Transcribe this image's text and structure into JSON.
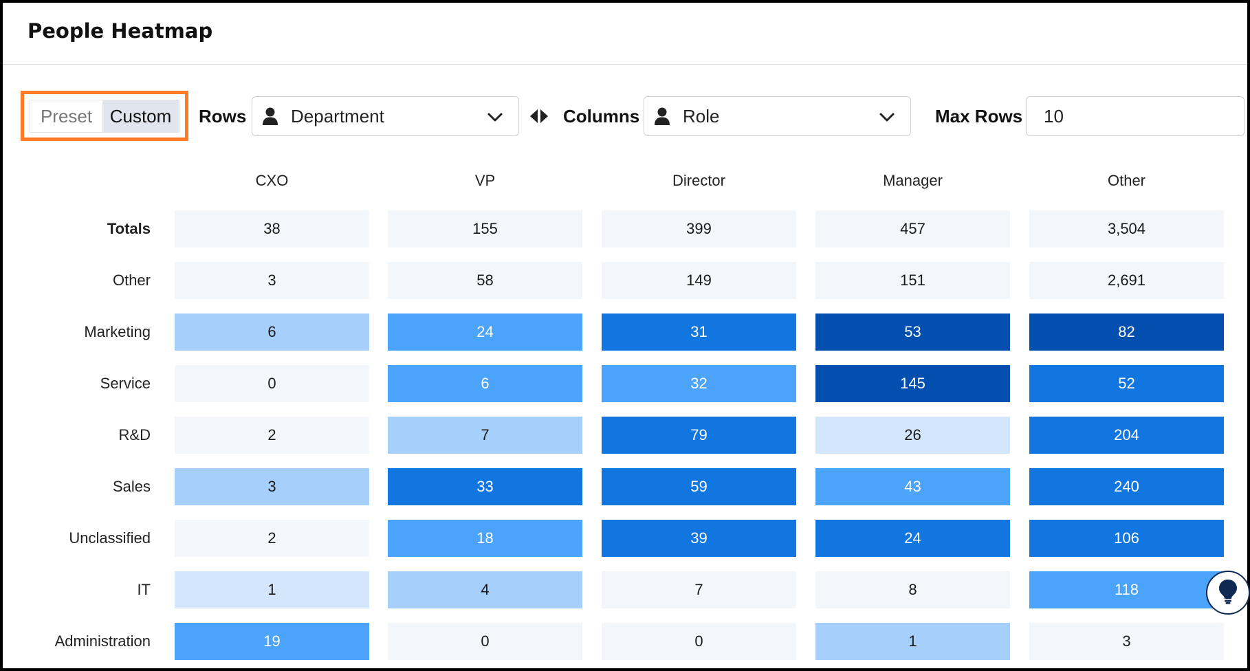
{
  "page": {
    "title": "People Heatmap"
  },
  "controls": {
    "preset_label": "Preset",
    "custom_label": "Custom",
    "rows_label": "Rows",
    "rows_value": "Department",
    "columns_label": "Columns",
    "columns_value": "Role",
    "max_rows_label": "Max Rows",
    "max_rows_value": "10"
  },
  "icons": {
    "person": "person-icon",
    "chevron": "chevron-down-icon",
    "swap": "swap-horizontal-icon",
    "hint": "lightbulb-icon"
  },
  "colors": {
    "highlight": "#ff7a26",
    "level_0": "#f3f7fc",
    "level_1": "#d3e6fc",
    "level_2": "#a6d0fb",
    "level_3": "#4ba3fa",
    "level_4": "#1276e1",
    "level_5": "#034fb0"
  },
  "chart_data": {
    "type": "heatmap",
    "columns": [
      "CXO",
      "VP",
      "Director",
      "Manager",
      "Other"
    ],
    "totals_label": "Totals",
    "totals": [
      "38",
      "155",
      "399",
      "457",
      "3,504"
    ],
    "rows": [
      {
        "label": "Other",
        "values": [
          "3",
          "58",
          "149",
          "151",
          "2,691"
        ],
        "levels": [
          0,
          0,
          0,
          0,
          0
        ]
      },
      {
        "label": "Marketing",
        "values": [
          "6",
          "24",
          "31",
          "53",
          "82"
        ],
        "levels": [
          2,
          3,
          4,
          5,
          5
        ]
      },
      {
        "label": "Service",
        "values": [
          "0",
          "6",
          "32",
          "145",
          "52"
        ],
        "levels": [
          0,
          3,
          3,
          5,
          4
        ]
      },
      {
        "label": "R&D",
        "values": [
          "2",
          "7",
          "79",
          "26",
          "204"
        ],
        "levels": [
          0,
          2,
          4,
          1,
          4
        ]
      },
      {
        "label": "Sales",
        "values": [
          "3",
          "33",
          "59",
          "43",
          "240"
        ],
        "levels": [
          2,
          4,
          4,
          3,
          4
        ]
      },
      {
        "label": "Unclassified",
        "values": [
          "2",
          "18",
          "39",
          "24",
          "106"
        ],
        "levels": [
          0,
          3,
          4,
          4,
          4
        ]
      },
      {
        "label": "IT",
        "values": [
          "1",
          "4",
          "7",
          "8",
          "118"
        ],
        "levels": [
          1,
          2,
          0,
          0,
          3
        ]
      },
      {
        "label": "Administration",
        "values": [
          "19",
          "0",
          "0",
          "1",
          "3"
        ],
        "levels": [
          3,
          0,
          0,
          2,
          0
        ]
      }
    ]
  }
}
